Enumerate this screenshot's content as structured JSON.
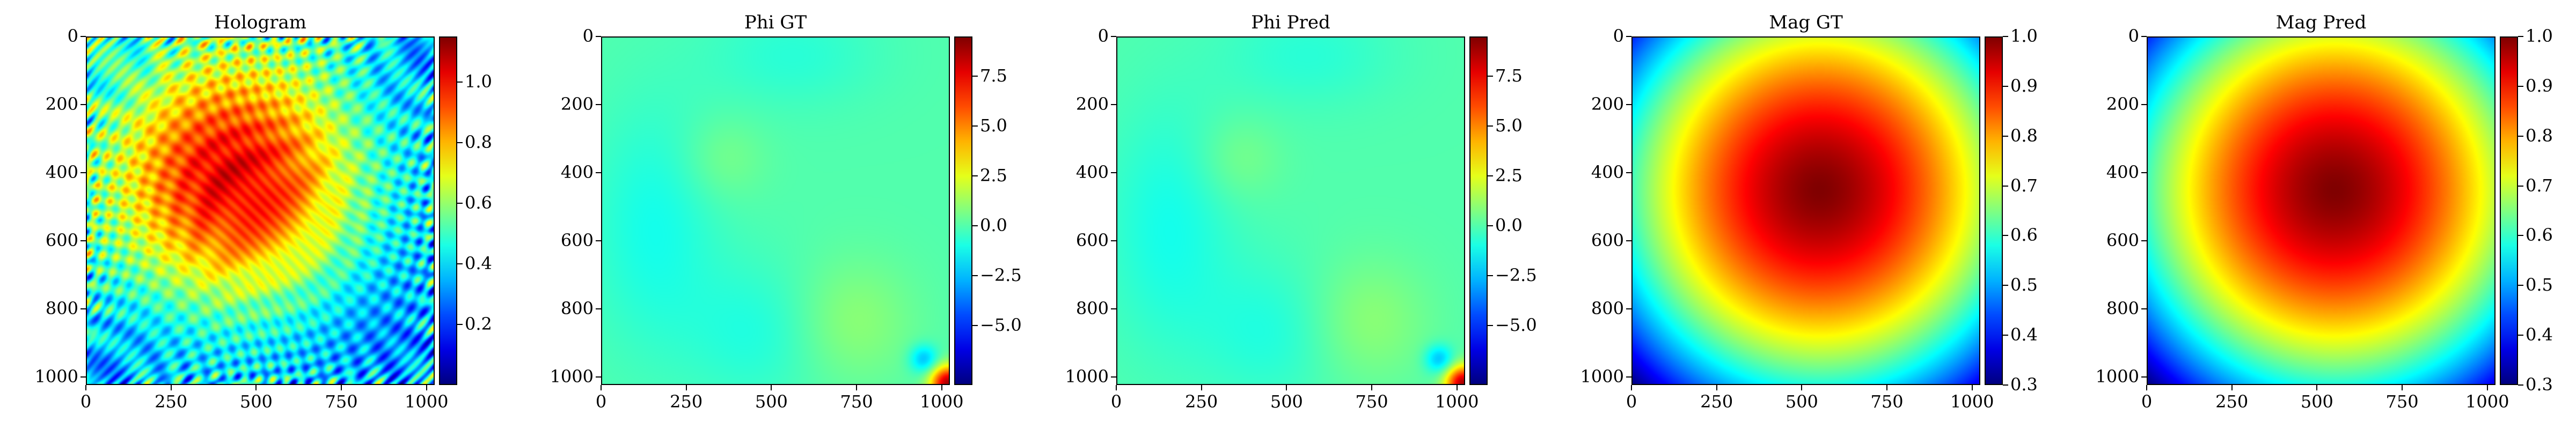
{
  "chart_data": [
    {
      "type": "heatmap",
      "title": "Hologram",
      "colormap": "jet",
      "x_ticks": [
        0,
        250,
        500,
        750,
        1000
      ],
      "y_ticks": [
        0,
        200,
        400,
        600,
        800,
        1000
      ],
      "xlim": [
        0,
        1024
      ],
      "ylim": [
        1024,
        0
      ],
      "colorbar": {
        "min": 0.0,
        "max": 1.15,
        "ticks": [
          0.2,
          0.4,
          0.6,
          0.8,
          1.0
        ],
        "tick_labels": [
          "0.2",
          "0.4",
          "0.6",
          "0.8",
          "1.0"
        ]
      },
      "field": "hologram"
    },
    {
      "type": "heatmap",
      "title": "Phi GT",
      "colormap": "jet",
      "x_ticks": [
        0,
        250,
        500,
        750,
        1000
      ],
      "y_ticks": [
        0,
        200,
        400,
        600,
        800,
        1000
      ],
      "xlim": [
        0,
        1024
      ],
      "ylim": [
        1024,
        0
      ],
      "colorbar": {
        "min": -8.0,
        "max": 9.5,
        "ticks": [
          -5.0,
          -2.5,
          0.0,
          2.5,
          5.0,
          7.5
        ],
        "tick_labels": [
          "−5.0",
          "−2.5",
          "0.0",
          "2.5",
          "5.0",
          "7.5"
        ]
      },
      "field": "phase"
    },
    {
      "type": "heatmap",
      "title": "Phi Pred",
      "colormap": "jet",
      "x_ticks": [
        0,
        250,
        500,
        750,
        1000
      ],
      "y_ticks": [
        0,
        200,
        400,
        600,
        800,
        1000
      ],
      "xlim": [
        0,
        1024
      ],
      "ylim": [
        1024,
        0
      ],
      "colorbar": {
        "min": -8.0,
        "max": 9.5,
        "ticks": [
          -5.0,
          -2.5,
          0.0,
          2.5,
          5.0,
          7.5
        ],
        "tick_labels": [
          "−5.0",
          "−2.5",
          "0.0",
          "2.5",
          "5.0",
          "7.5"
        ]
      },
      "field": "phase"
    },
    {
      "type": "heatmap",
      "title": "Mag GT",
      "colormap": "jet",
      "x_ticks": [
        0,
        250,
        500,
        750,
        1000
      ],
      "y_ticks": [
        0,
        200,
        400,
        600,
        800,
        1000
      ],
      "xlim": [
        0,
        1024
      ],
      "ylim": [
        1024,
        0
      ],
      "colorbar": {
        "min": 0.3,
        "max": 1.0,
        "ticks": [
          0.3,
          0.4,
          0.5,
          0.6,
          0.7,
          0.8,
          0.9,
          1.0
        ],
        "tick_labels": [
          "0.3",
          "0.4",
          "0.5",
          "0.6",
          "0.7",
          "0.8",
          "0.9",
          "1.0"
        ]
      },
      "field": "magnitude"
    },
    {
      "type": "heatmap",
      "title": "Mag Pred",
      "colormap": "jet",
      "x_ticks": [
        0,
        250,
        500,
        750,
        1000
      ],
      "y_ticks": [
        0,
        200,
        400,
        600,
        800,
        1000
      ],
      "xlim": [
        0,
        1024
      ],
      "ylim": [
        1024,
        0
      ],
      "colorbar": {
        "min": 0.3,
        "max": 1.0,
        "ticks": [
          0.3,
          0.4,
          0.5,
          0.6,
          0.7,
          0.8,
          0.9,
          1.0
        ],
        "tick_labels": [
          "0.3",
          "0.4",
          "0.5",
          "0.6",
          "0.7",
          "0.8",
          "0.9",
          "1.0"
        ]
      },
      "field": "magnitude"
    }
  ]
}
